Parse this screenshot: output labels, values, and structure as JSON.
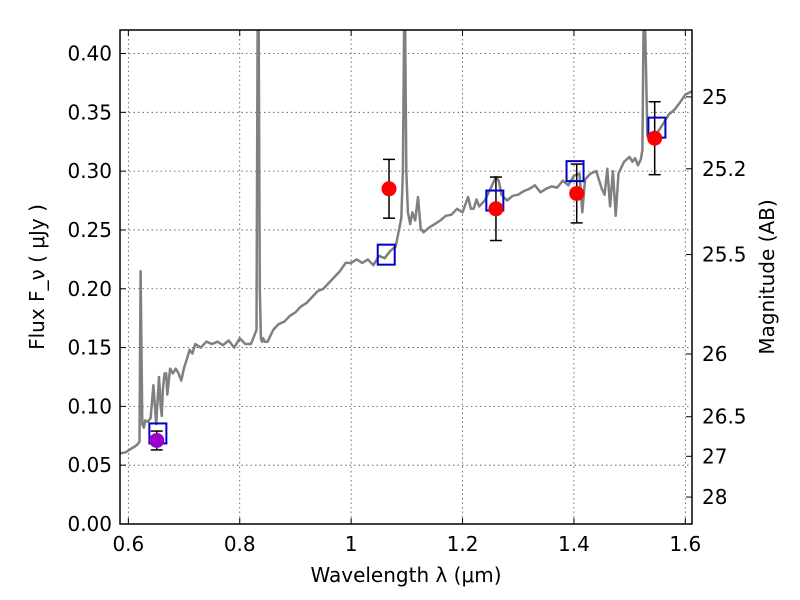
{
  "chart_data": {
    "type": "scatter",
    "title": "",
    "xlabel": "Wavelength  λ (μm)",
    "ylabel": "Flux  F_ν  ( μJy )",
    "ylabel_right": "Magnitude (AB)",
    "xlim": [
      0.585,
      1.612
    ],
    "ylim": [
      0.0,
      0.42
    ],
    "grid": true,
    "colors": {
      "spectrum": "#808080",
      "observed": "#ff0000",
      "observed_first": "#9900cc",
      "model": "#0000cc",
      "errorbar": "#000000"
    },
    "x_ticks": [
      {
        "value": 0.6,
        "label": "0.6"
      },
      {
        "value": 0.8,
        "label": "0.8"
      },
      {
        "value": 1.0,
        "label": "1"
      },
      {
        "value": 1.2,
        "label": "1.2"
      },
      {
        "value": 1.4,
        "label": "1.4"
      },
      {
        "value": 1.6,
        "label": "1.6"
      }
    ],
    "y_ticks": [
      {
        "value": 0.0,
        "label": "0.00"
      },
      {
        "value": 0.05,
        "label": "0.05"
      },
      {
        "value": 0.1,
        "label": "0.10"
      },
      {
        "value": 0.15,
        "label": "0.15"
      },
      {
        "value": 0.2,
        "label": "0.20"
      },
      {
        "value": 0.25,
        "label": "0.25"
      },
      {
        "value": 0.3,
        "label": "0.30"
      },
      {
        "value": 0.35,
        "label": "0.35"
      },
      {
        "value": 0.4,
        "label": "0.40"
      }
    ],
    "mag_ticks": [
      {
        "value": 25,
        "label": "25"
      },
      {
        "value": 25.2,
        "label": "25.2"
      },
      {
        "value": 25.5,
        "label": "25.5"
      },
      {
        "value": 26,
        "label": "26"
      },
      {
        "value": 26.5,
        "label": "26.5"
      },
      {
        "value": 27,
        "label": "27"
      },
      {
        "value": 28,
        "label": "28"
      }
    ],
    "spectrum": {
      "x": [
        0.585,
        0.595,
        0.605,
        0.612,
        0.617,
        0.62,
        0.622,
        0.625,
        0.628,
        0.63,
        0.635,
        0.64,
        0.645,
        0.65,
        0.655,
        0.658,
        0.66,
        0.662,
        0.665,
        0.668,
        0.67,
        0.675,
        0.68,
        0.685,
        0.69,
        0.695,
        0.7,
        0.705,
        0.71,
        0.715,
        0.72,
        0.73,
        0.74,
        0.75,
        0.76,
        0.77,
        0.78,
        0.79,
        0.8,
        0.81,
        0.82,
        0.826,
        0.83,
        0.832,
        0.834,
        0.836,
        0.838,
        0.84,
        0.842,
        0.845,
        0.85,
        0.86,
        0.87,
        0.88,
        0.89,
        0.9,
        0.91,
        0.92,
        0.93,
        0.94,
        0.95,
        0.96,
        0.97,
        0.98,
        0.99,
        1.0,
        1.01,
        1.02,
        1.03,
        1.04,
        1.05,
        1.06,
        1.07,
        1.08,
        1.085,
        1.09,
        1.093,
        1.095,
        1.097,
        1.099,
        1.102,
        1.106,
        1.11,
        1.115,
        1.12,
        1.125,
        1.128,
        1.13,
        1.135,
        1.14,
        1.15,
        1.16,
        1.17,
        1.18,
        1.19,
        1.2,
        1.21,
        1.215,
        1.22,
        1.225,
        1.23,
        1.24,
        1.25,
        1.26,
        1.265,
        1.27,
        1.28,
        1.29,
        1.3,
        1.31,
        1.32,
        1.33,
        1.34,
        1.35,
        1.36,
        1.37,
        1.38,
        1.39,
        1.4,
        1.41,
        1.415,
        1.42,
        1.43,
        1.44,
        1.45,
        1.455,
        1.46,
        1.465,
        1.47,
        1.475,
        1.48,
        1.49,
        1.5,
        1.505,
        1.51,
        1.515,
        1.52,
        1.523,
        1.525,
        1.528,
        1.532,
        1.54,
        1.55,
        1.56,
        1.57,
        1.58,
        1.59,
        1.6,
        1.612
      ],
      "y": [
        0.06,
        0.061,
        0.064,
        0.066,
        0.068,
        0.07,
        0.215,
        0.085,
        0.082,
        0.088,
        0.087,
        0.09,
        0.118,
        0.085,
        0.125,
        0.1,
        0.092,
        0.115,
        0.128,
        0.128,
        0.11,
        0.132,
        0.128,
        0.132,
        0.128,
        0.122,
        0.133,
        0.14,
        0.148,
        0.145,
        0.153,
        0.15,
        0.155,
        0.153,
        0.155,
        0.152,
        0.156,
        0.15,
        0.158,
        0.153,
        0.153,
        0.16,
        0.165,
        0.42,
        0.42,
        0.2,
        0.158,
        0.155,
        0.158,
        0.155,
        0.155,
        0.165,
        0.17,
        0.172,
        0.177,
        0.18,
        0.185,
        0.188,
        0.193,
        0.198,
        0.2,
        0.205,
        0.21,
        0.215,
        0.222,
        0.222,
        0.225,
        0.222,
        0.225,
        0.22,
        0.228,
        0.226,
        0.232,
        0.236,
        0.248,
        0.26,
        0.3,
        0.42,
        0.42,
        0.3,
        0.265,
        0.255,
        0.265,
        0.258,
        0.278,
        0.25,
        0.25,
        0.248,
        0.25,
        0.252,
        0.255,
        0.258,
        0.262,
        0.263,
        0.268,
        0.265,
        0.278,
        0.268,
        0.268,
        0.276,
        0.27,
        0.275,
        0.285,
        0.295,
        0.292,
        0.28,
        0.275,
        0.279,
        0.28,
        0.283,
        0.285,
        0.288,
        0.282,
        0.285,
        0.287,
        0.286,
        0.292,
        0.288,
        0.296,
        0.298,
        0.265,
        0.293,
        0.298,
        0.3,
        0.285,
        0.28,
        0.302,
        0.27,
        0.3,
        0.262,
        0.298,
        0.308,
        0.312,
        0.308,
        0.311,
        0.305,
        0.31,
        0.318,
        0.42,
        0.42,
        0.33,
        0.325,
        0.333,
        0.34,
        0.348,
        0.352,
        0.358,
        0.365,
        0.368
      ]
    },
    "series": [
      {
        "marker": "filled-circle",
        "points": [
          {
            "x": 0.651,
            "y": 0.071,
            "err": 0.008
          },
          {
            "x": 1.068,
            "y": 0.285,
            "err": 0.025
          },
          {
            "x": 1.26,
            "y": 0.268,
            "err": 0.027
          },
          {
            "x": 1.405,
            "y": 0.281,
            "err": 0.025
          },
          {
            "x": 1.545,
            "y": 0.328,
            "err": 0.031
          }
        ]
      },
      {
        "marker": "open-square",
        "points": [
          {
            "x": 0.653,
            "y": 0.077
          },
          {
            "x": 1.063,
            "y": 0.229
          },
          {
            "x": 1.258,
            "y": 0.275
          },
          {
            "x": 1.402,
            "y": 0.3
          },
          {
            "x": 1.549,
            "y": 0.337
          }
        ]
      }
    ]
  }
}
